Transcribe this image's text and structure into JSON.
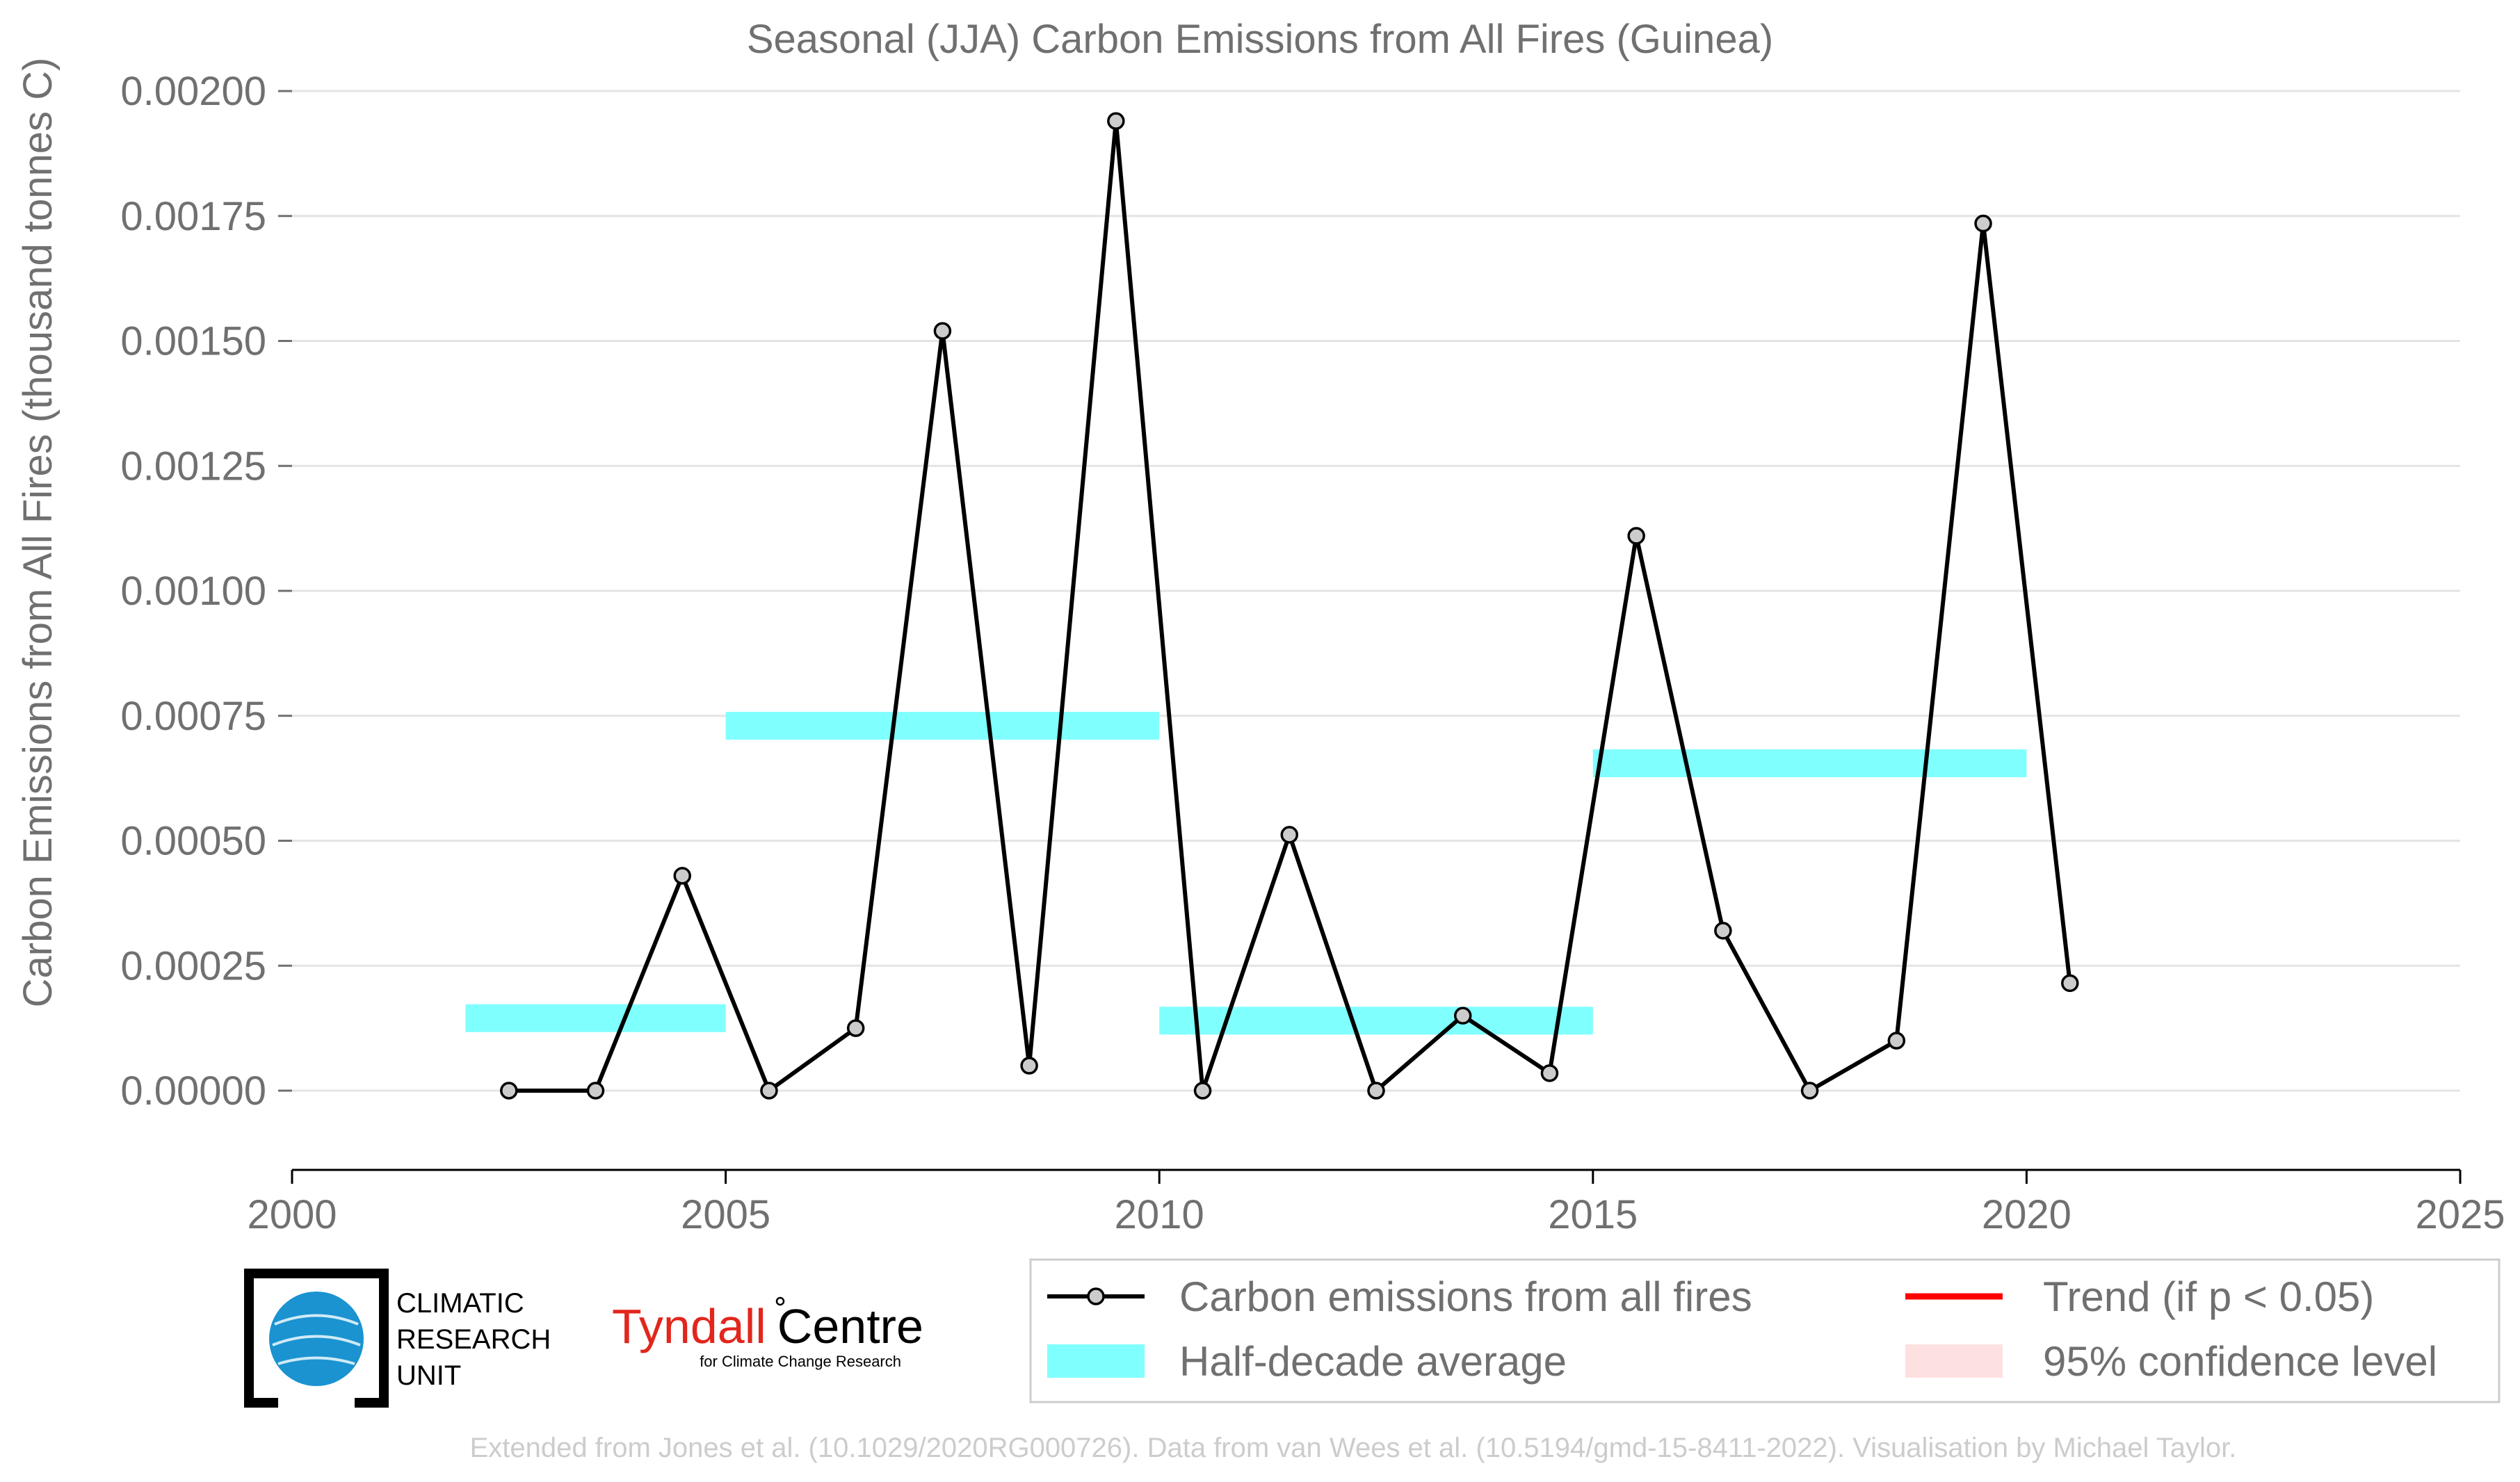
{
  "chart_data": {
    "type": "line",
    "title": "Seasonal (JJA) Carbon Emissions from All Fires (Guinea)",
    "ylabel": "Carbon Emissions from All Fires (thousand tonnes C)",
    "xlabel": "",
    "xlim": [
      2000,
      2025
    ],
    "ylim": [
      -0.00016,
      0.0021
    ],
    "x_ticks": [
      "2000",
      "2005",
      "2010",
      "2015",
      "2020",
      "2025"
    ],
    "y_ticks": [
      "0.00000",
      "0.00025",
      "0.00050",
      "0.00075",
      "0.00100",
      "0.00125",
      "0.00150",
      "0.00175",
      "0.00200"
    ],
    "grid": "horizontal",
    "series": [
      {
        "name": "Carbon emissions from all fires",
        "color": "#000000",
        "marker_fill": "#cccccc",
        "x": [
          2002.5,
          2003.5,
          2004.5,
          2005.5,
          2006.5,
          2007.5,
          2008.5,
          2009.5,
          2010.5,
          2011.5,
          2012.5,
          2013.5,
          2014.5,
          2015.5,
          2016.5,
          2017.5,
          2018.5,
          2019.5,
          2020.5
        ],
        "y": [
          0.0,
          0.0,
          0.00043,
          0.0,
          0.000125,
          0.00152,
          5e-05,
          0.00194,
          0.0,
          0.000512,
          0.0,
          0.00015,
          3.5e-05,
          0.00111,
          0.00032,
          0.0,
          0.0001,
          0.001735,
          0.000215
        ]
      }
    ],
    "half_decade": {
      "name": "Half-decade average",
      "color": "#80ffff",
      "segments": [
        {
          "x0": 2002,
          "x1": 2005,
          "y": 0.000145
        },
        {
          "x0": 2005,
          "x1": 2010,
          "y": 0.00073
        },
        {
          "x0": 2010,
          "x1": 2015,
          "y": 0.00014
        },
        {
          "x0": 2015,
          "x1": 2020,
          "y": 0.000655
        }
      ]
    },
    "legend": {
      "placement": "bottom-right",
      "entries": [
        {
          "label": "Carbon emissions from all fires",
          "kind": "line-marker",
          "color": "#000000"
        },
        {
          "label": "Trend (if p < 0.05)",
          "kind": "line",
          "color": "#ff0000"
        },
        {
          "label": "Half-decade average",
          "kind": "band",
          "color": "#80ffff"
        },
        {
          "label": "95% confidence level",
          "kind": "band",
          "color": "#fde0e0"
        }
      ]
    }
  },
  "logos": {
    "cru_lines": [
      "CLIMATIC",
      "RESEARCH",
      "UNIT"
    ],
    "tyndall_part1": "Tyndall",
    "tyndall_part2": "Centre",
    "tyndall_sub": "for Climate Change Research"
  },
  "footer": "Extended from Jones et al. (10.1029/2020RG000726). Data from van Wees et al. (10.5194/gmd-15-8411-2022). Visualisation by Michael Taylor."
}
